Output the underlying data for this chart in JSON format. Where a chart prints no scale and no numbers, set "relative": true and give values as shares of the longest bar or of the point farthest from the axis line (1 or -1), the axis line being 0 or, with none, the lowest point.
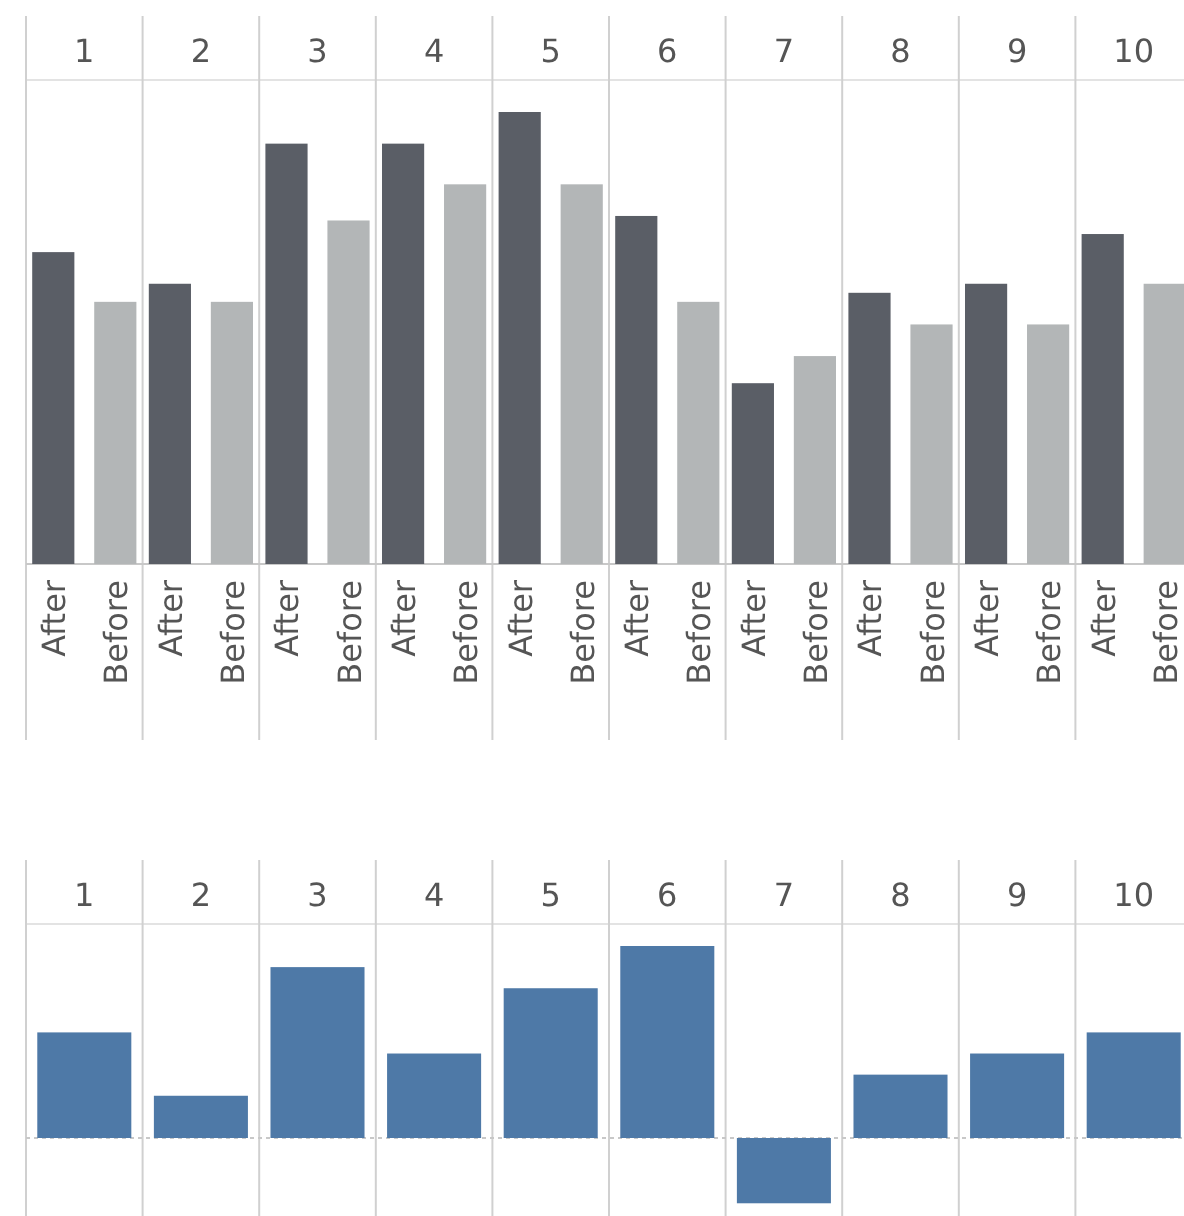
{
  "chart_data": [
    {
      "type": "bar",
      "relative": true,
      "categories": [
        "1",
        "2",
        "3",
        "4",
        "5",
        "6",
        "7",
        "8",
        "9",
        "10"
      ],
      "series": [
        {
          "name": "After",
          "color": "#5a5e66",
          "values": [
            0.69,
            0.62,
            0.93,
            0.93,
            1,
            0.77,
            0.4,
            0.6,
            0.62,
            0.73
          ]
        },
        {
          "name": "Before",
          "color": "#b3b6b7",
          "values": [
            0.58,
            0.58,
            0.76,
            0.84,
            0.84,
            0.58,
            0.46,
            0.53,
            0.53,
            0.62
          ]
        }
      ]
    },
    {
      "type": "bar",
      "relative": true,
      "categories": [
        "1",
        "2",
        "3",
        "4",
        "5",
        "6",
        "7",
        "8",
        "9",
        "10"
      ],
      "color": "#4e79a7",
      "ref_lines": [
        {
          "axis": "y",
          "value": 0,
          "line_style": "dashed",
          "color": "#c8c8c8"
        }
      ],
      "values": [
        0.55,
        0.22,
        0.89,
        0.44,
        0.78,
        1,
        -0.34,
        0.33,
        0.44,
        0.55
      ]
    }
  ]
}
